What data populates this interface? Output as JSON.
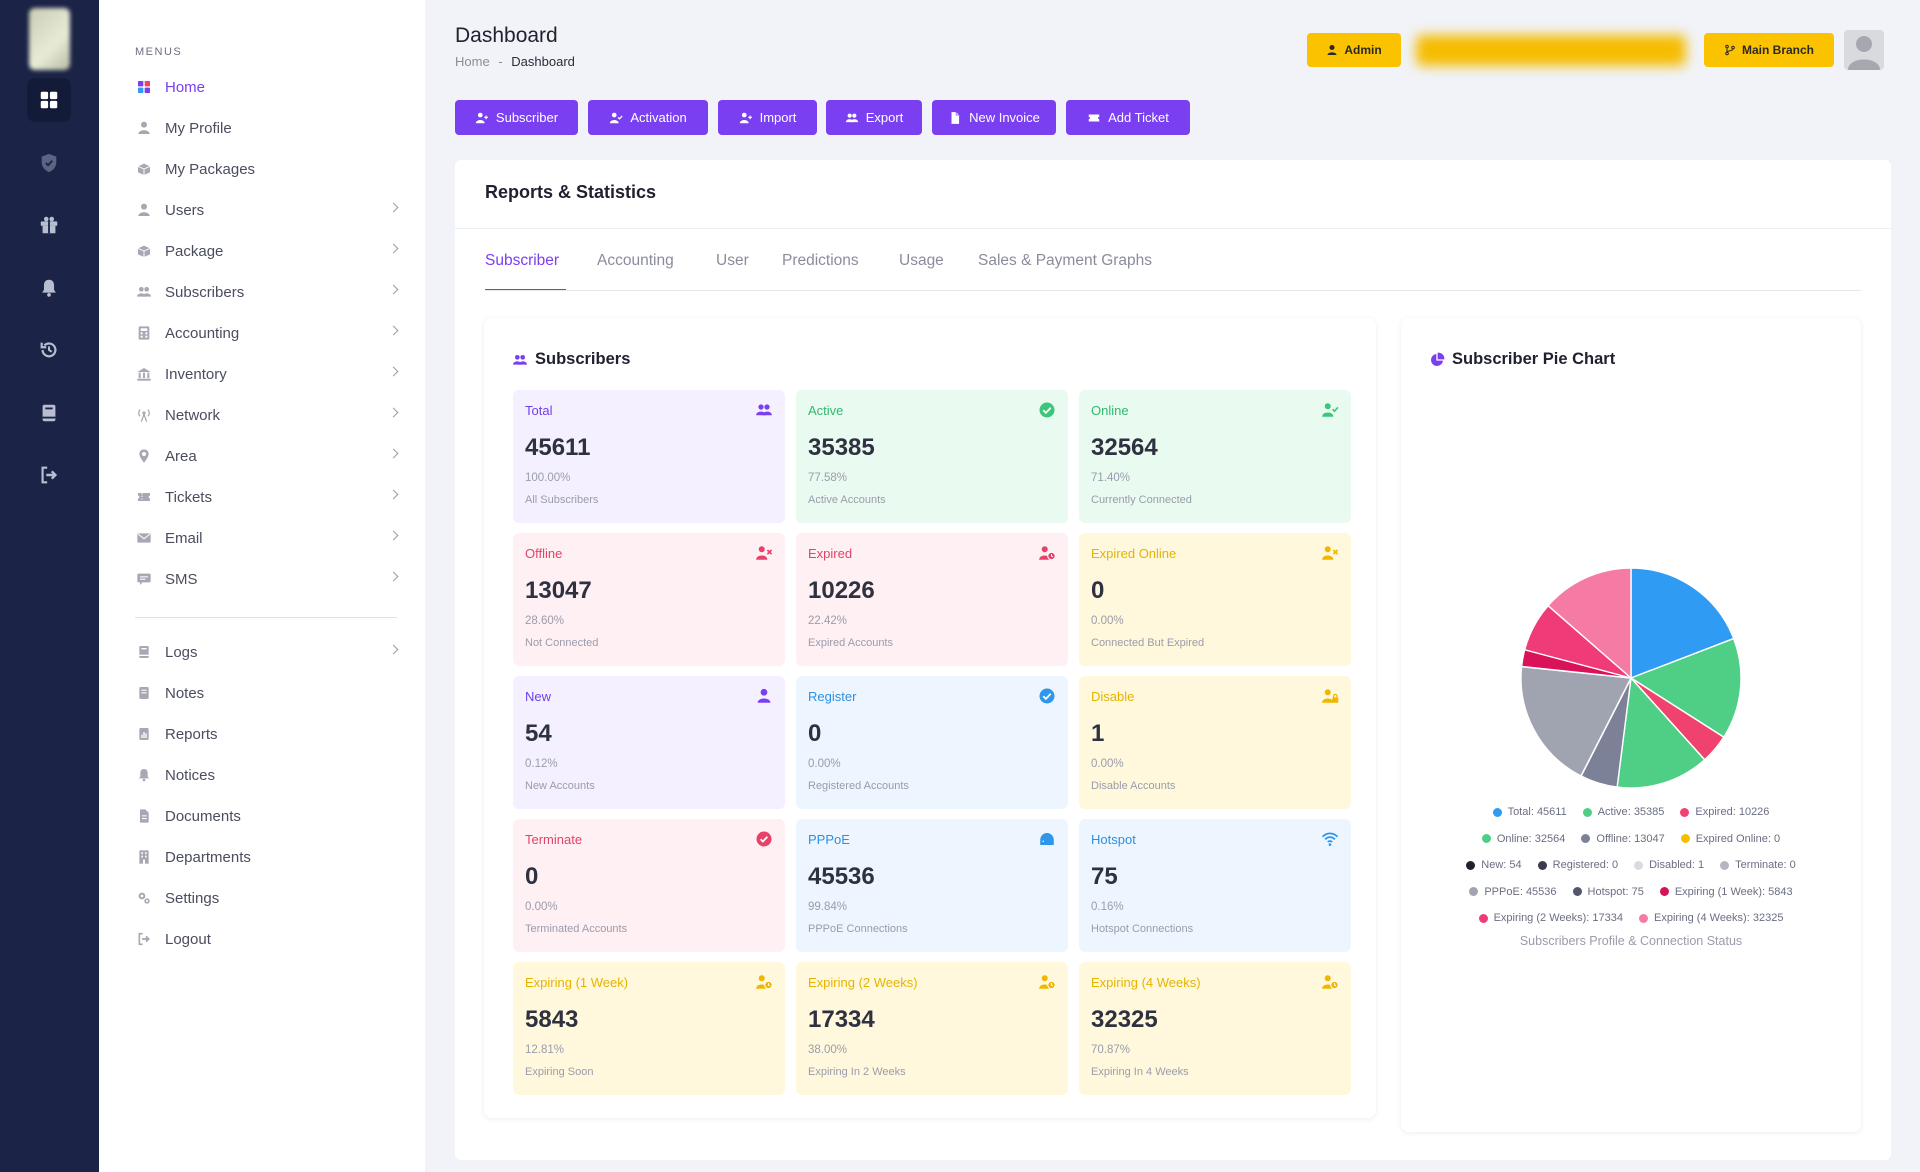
{
  "menu": {
    "heading": "MENUS",
    "items": [
      {
        "label": "Home",
        "icon": "grid-icon",
        "chevron": false,
        "active": true
      },
      {
        "label": "My Profile",
        "icon": "user-icon",
        "chevron": false
      },
      {
        "label": "My Packages",
        "icon": "box-icon",
        "chevron": false
      },
      {
        "label": "Users",
        "icon": "user-icon",
        "chevron": true
      },
      {
        "label": "Package",
        "icon": "box-icon",
        "chevron": true
      },
      {
        "label": "Subscribers",
        "icon": "users-icon",
        "chevron": true
      },
      {
        "label": "Accounting",
        "icon": "calculator-icon",
        "chevron": true
      },
      {
        "label": "Inventory",
        "icon": "bank-icon",
        "chevron": true
      },
      {
        "label": "Network",
        "icon": "antenna-icon",
        "chevron": true
      },
      {
        "label": "Area",
        "icon": "pin-icon",
        "chevron": true
      },
      {
        "label": "Tickets",
        "icon": "ticket-icon",
        "chevron": true
      },
      {
        "label": "Email",
        "icon": "mail-icon",
        "chevron": true
      },
      {
        "label": "SMS",
        "icon": "message-icon",
        "chevron": true
      }
    ],
    "items2": [
      {
        "label": "Logs",
        "icon": "book-icon",
        "chevron": true
      },
      {
        "label": "Notes",
        "icon": "note-icon",
        "chevron": false
      },
      {
        "label": "Reports",
        "icon": "report-icon",
        "chevron": false
      },
      {
        "label": "Notices",
        "icon": "bell-icon",
        "chevron": false
      },
      {
        "label": "Documents",
        "icon": "document-icon",
        "chevron": false
      },
      {
        "label": "Departments",
        "icon": "building-icon",
        "chevron": false
      },
      {
        "label": "Settings",
        "icon": "gears-icon",
        "chevron": false
      },
      {
        "label": "Logout",
        "icon": "logout-icon",
        "chevron": false
      }
    ]
  },
  "header": {
    "title": "Dashboard",
    "breadcrumb": [
      "Home",
      "-",
      "Dashboard"
    ],
    "admin_label": "Admin",
    "branch_label": "Main Branch"
  },
  "actions": [
    {
      "label": "Subscriber",
      "icon": "user-plus-icon"
    },
    {
      "label": "Activation",
      "icon": "user-check-icon"
    },
    {
      "label": "Import",
      "icon": "user-plus-icon"
    },
    {
      "label": "Export",
      "icon": "users-icon"
    },
    {
      "label": "New Invoice",
      "icon": "file-icon"
    },
    {
      "label": "Add Ticket",
      "icon": "ticket-icon"
    }
  ],
  "panel": {
    "title": "Reports & Statistics",
    "tabs": [
      "Subscriber",
      "Accounting",
      "User",
      "Predictions",
      "Usage",
      "Sales & Payment Graphs"
    ]
  },
  "subscribers": {
    "title": "Subscribers",
    "stats": [
      {
        "label": "Total",
        "value": "45611",
        "pct": "100.00%",
        "desc": "All Subscribers",
        "tone": "purple",
        "icon": "users-icon"
      },
      {
        "label": "Active",
        "value": "35385",
        "pct": "77.58%",
        "desc": "Active Accounts",
        "tone": "green",
        "icon": "check-circle-icon"
      },
      {
        "label": "Online",
        "value": "32564",
        "pct": "71.40%",
        "desc": "Currently Connected",
        "tone": "green",
        "icon": "user-check-icon"
      },
      {
        "label": "Offline",
        "value": "13047",
        "pct": "28.60%",
        "desc": "Not Connected",
        "tone": "red",
        "icon": "user-x-icon"
      },
      {
        "label": "Expired",
        "value": "10226",
        "pct": "22.42%",
        "desc": "Expired Accounts",
        "tone": "red",
        "icon": "user-clock-icon"
      },
      {
        "label": "Expired Online",
        "value": "0",
        "pct": "0.00%",
        "desc": "Connected But Expired",
        "tone": "yellow",
        "icon": "user-x-icon"
      },
      {
        "label": "New",
        "value": "54",
        "pct": "0.12%",
        "desc": "New Accounts",
        "tone": "purple",
        "icon": "user-icon"
      },
      {
        "label": "Register",
        "value": "0",
        "pct": "0.00%",
        "desc": "Registered Accounts",
        "tone": "blue",
        "icon": "check-circle-icon"
      },
      {
        "label": "Disable",
        "value": "1",
        "pct": "0.00%",
        "desc": "Disable Accounts",
        "tone": "yellow",
        "icon": "user-lock-icon"
      },
      {
        "label": "Terminate",
        "value": "0",
        "pct": "0.00%",
        "desc": "Terminated Accounts",
        "tone": "red",
        "icon": "x-circle-icon"
      },
      {
        "label": "PPPoE",
        "value": "45536",
        "pct": "99.84%",
        "desc": "PPPoE Connections",
        "tone": "blue",
        "icon": "modem-icon"
      },
      {
        "label": "Hotspot",
        "value": "75",
        "pct": "0.16%",
        "desc": "Hotspot Connections",
        "tone": "blue",
        "icon": "wifi-icon"
      },
      {
        "label": "Expiring (1 Week)",
        "value": "5843",
        "pct": "12.81%",
        "desc": "Expiring Soon",
        "tone": "yellow",
        "icon": "user-clock-icon"
      },
      {
        "label": "Expiring (2 Weeks)",
        "value": "17334",
        "pct": "38.00%",
        "desc": "Expiring In 2 Weeks",
        "tone": "yellow",
        "icon": "user-clock-icon"
      },
      {
        "label": "Expiring (4 Weeks)",
        "value": "32325",
        "pct": "70.87%",
        "desc": "Expiring In 4 Weeks",
        "tone": "yellow",
        "icon": "user-clock-icon"
      }
    ]
  },
  "pie": {
    "title": "Subscriber Pie Chart",
    "caption": "Subscribers Profile & Connection Status"
  },
  "chart_data": {
    "type": "pie",
    "title": "Subscriber Pie Chart",
    "slices": [
      {
        "name": "Total",
        "value": 45611,
        "color": "#2f9bf2"
      },
      {
        "name": "Active",
        "value": 35385,
        "color": "#4fcf86"
      },
      {
        "name": "Expired",
        "value": 10226,
        "color": "#f0426e"
      },
      {
        "name": "Online",
        "value": 32564,
        "color": "#4fcf86"
      },
      {
        "name": "Offline",
        "value": 13047,
        "color": "#7d8197"
      },
      {
        "name": "Expired Online",
        "value": 0,
        "color": "#f5c000"
      },
      {
        "name": "New",
        "value": 54,
        "color": "#20222e"
      },
      {
        "name": "Registered",
        "value": 0,
        "color": "#3a3c4e"
      },
      {
        "name": "Disabled",
        "value": 1,
        "color": "#dadbe0"
      },
      {
        "name": "Terminate",
        "value": 0,
        "color": "#b4b6c2"
      },
      {
        "name": "PPPoE",
        "value": 45536,
        "color": "#a0a3b0"
      },
      {
        "name": "Hotspot",
        "value": 75,
        "color": "#53566e"
      },
      {
        "name": "Expiring (1 Week)",
        "value": 5843,
        "color": "#d9125a"
      },
      {
        "name": "Expiring (2 Weeks)",
        "value": 17334,
        "color": "#ef3c78"
      },
      {
        "name": "Expiring (4 Weeks)",
        "value": 32325,
        "color": "#f57aa4"
      }
    ],
    "legend_placement": "bottom"
  },
  "colors": {
    "accent": "#7b3ff2",
    "rail": "#1b2346",
    "warning": "#fbc200"
  }
}
